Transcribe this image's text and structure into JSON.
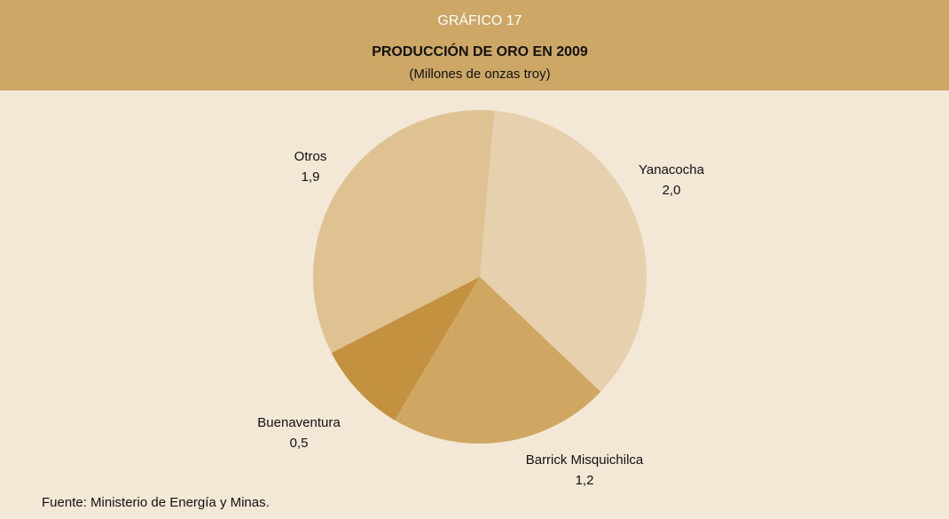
{
  "chart_data": {
    "type": "pie",
    "kicker": "GRÁFICO 17",
    "title": "PRODUCCIÓN DE ORO EN 2009",
    "subtitle": "(Millones de onzas troy)",
    "categories": [
      "Yanacocha",
      "Barrick Misquichilca",
      "Buenaventura",
      "Otros"
    ],
    "values": [
      2.0,
      1.2,
      0.5,
      1.9
    ],
    "value_labels": [
      "2,0",
      "1,2",
      "0,5",
      "1,9"
    ],
    "colors": [
      "#e6d0ad",
      "#cfa762",
      "#c3913f",
      "#dfc292"
    ],
    "source": "Fuente: Ministerio de Energía y Minas."
  }
}
